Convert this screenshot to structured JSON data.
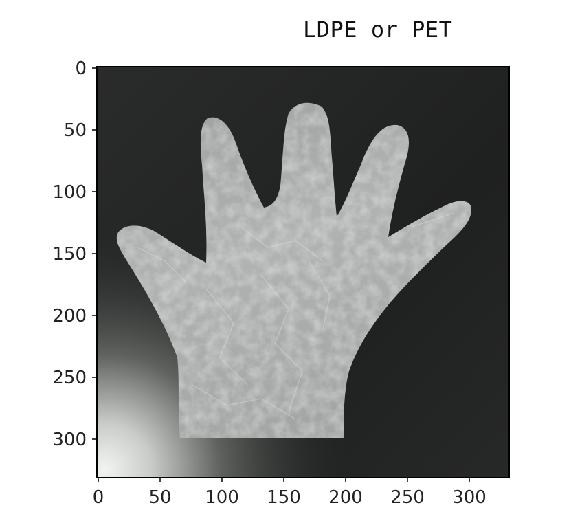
{
  "figure": {
    "title": "LDPE or PET",
    "image_subject": "crumpled transparent plastic glove on dark background",
    "x_axis": {
      "ticks": [
        "0",
        "50",
        "100",
        "150",
        "200",
        "250",
        "300"
      ],
      "range": [
        0,
        332
      ]
    },
    "y_axis": {
      "ticks": [
        "0",
        "50",
        "100",
        "150",
        "200",
        "250",
        "300"
      ],
      "range": [
        0,
        332
      ]
    }
  },
  "colors": {
    "background": "#1e1f1f",
    "glove": "#a7a9a8",
    "axis": "#000000"
  }
}
